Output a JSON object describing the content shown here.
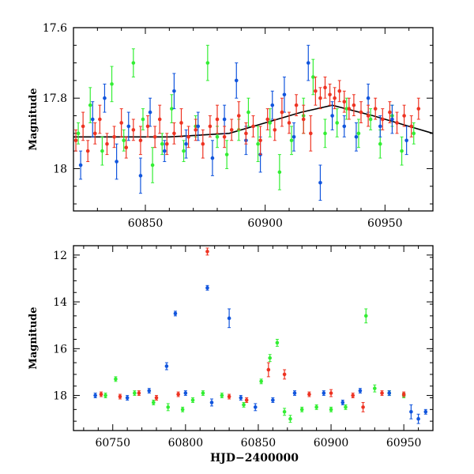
{
  "chart_data": [
    {
      "type": "scatter",
      "panel": "top",
      "title": "",
      "xlabel": "",
      "ylabel": "Magnitude",
      "xlim": [
        60820,
        60970
      ],
      "ylim": [
        17.6,
        18.12
      ],
      "y_inverted": true,
      "xticks": [
        60850,
        60900,
        60950
      ],
      "xtick_labels": [
        "60850",
        "60900",
        "60950"
      ],
      "yticks": [
        17.6,
        17.8,
        18.0
      ],
      "ytick_labels": [
        "17.6",
        "17.8",
        "18"
      ],
      "series": [
        {
          "name": "green",
          "color": "#33ee33",
          "points": [
            [
              60822,
              17.9,
              0.03
            ],
            [
              60827,
              17.82,
              0.05
            ],
            [
              60832,
              17.95,
              0.04
            ],
            [
              60836,
              17.76,
              0.05
            ],
            [
              60841,
              17.92,
              0.03
            ],
            [
              60845,
              17.7,
              0.04
            ],
            [
              60849,
              17.86,
              0.03
            ],
            [
              60853,
              17.99,
              0.05
            ],
            [
              60857,
              17.93,
              0.03
            ],
            [
              60861,
              17.83,
              0.04
            ],
            [
              60866,
              17.95,
              0.03
            ],
            [
              60871,
              17.88,
              0.03
            ],
            [
              60876,
              17.7,
              0.05
            ],
            [
              60880,
              17.91,
              0.03
            ],
            [
              60884,
              17.96,
              0.04
            ],
            [
              60889,
              17.89,
              0.03
            ],
            [
              60893,
              17.84,
              0.04
            ],
            [
              60897,
              17.93,
              0.05
            ],
            [
              60902,
              17.87,
              0.04
            ],
            [
              60906,
              18.01,
              0.05
            ],
            [
              60911,
              17.92,
              0.04
            ],
            [
              60916,
              17.85,
              0.05
            ],
            [
              60920,
              17.74,
              0.05
            ],
            [
              60925,
              17.9,
              0.04
            ],
            [
              60930,
              17.87,
              0.04
            ],
            [
              60934,
              17.83,
              0.03
            ],
            [
              60939,
              17.9,
              0.04
            ],
            [
              60944,
              17.86,
              0.03
            ],
            [
              60948,
              17.93,
              0.04
            ],
            [
              60953,
              17.85,
              0.03
            ],
            [
              60957,
              17.95,
              0.04
            ],
            [
              60962,
              17.9,
              0.03
            ]
          ]
        },
        {
          "name": "blue",
          "color": "#1155dd",
          "points": [
            [
              60823,
              17.99,
              0.04
            ],
            [
              60828,
              17.86,
              0.05
            ],
            [
              60833,
              17.8,
              0.04
            ],
            [
              60838,
              17.98,
              0.05
            ],
            [
              60843,
              17.88,
              0.04
            ],
            [
              60848,
              18.02,
              0.05
            ],
            [
              60852,
              17.84,
              0.04
            ],
            [
              60858,
              17.95,
              0.03
            ],
            [
              60862,
              17.78,
              0.05
            ],
            [
              60867,
              17.93,
              0.04
            ],
            [
              60872,
              17.88,
              0.04
            ],
            [
              60878,
              17.97,
              0.05
            ],
            [
              60883,
              17.86,
              0.04
            ],
            [
              60888,
              17.75,
              0.05
            ],
            [
              60892,
              17.92,
              0.04
            ],
            [
              60898,
              17.96,
              0.05
            ],
            [
              60903,
              17.82,
              0.04
            ],
            [
              60908,
              17.79,
              0.05
            ],
            [
              60912,
              17.91,
              0.04
            ],
            [
              60918,
              17.7,
              0.05
            ],
            [
              60923,
              18.04,
              0.05
            ],
            [
              60928,
              17.85,
              0.04
            ],
            [
              60933,
              17.88,
              0.03
            ],
            [
              60938,
              17.91,
              0.04
            ],
            [
              60943,
              17.8,
              0.04
            ],
            [
              60948,
              17.88,
              0.03
            ],
            [
              60953,
              17.86,
              0.04
            ],
            [
              60959,
              17.92,
              0.04
            ]
          ]
        },
        {
          "name": "red",
          "color": "#ee3322",
          "points": [
            [
              60821,
              17.92,
              0.03
            ],
            [
              60824,
              17.88,
              0.04
            ],
            [
              60826,
              17.95,
              0.03
            ],
            [
              60829,
              17.9,
              0.03
            ],
            [
              60831,
              17.86,
              0.04
            ],
            [
              60834,
              17.93,
              0.03
            ],
            [
              60837,
              17.91,
              0.03
            ],
            [
              60840,
              17.87,
              0.04
            ],
            [
              60842,
              17.94,
              0.03
            ],
            [
              60845,
              17.89,
              0.03
            ],
            [
              60848,
              17.92,
              0.04
            ],
            [
              60851,
              17.88,
              0.03
            ],
            [
              60854,
              17.91,
              0.03
            ],
            [
              60856,
              17.86,
              0.04
            ],
            [
              60859,
              17.93,
              0.03
            ],
            [
              60862,
              17.9,
              0.03
            ],
            [
              60865,
              17.87,
              0.04
            ],
            [
              60868,
              17.91,
              0.03
            ],
            [
              60871,
              17.89,
              0.03
            ],
            [
              60874,
              17.93,
              0.04
            ],
            [
              60877,
              17.88,
              0.03
            ],
            [
              60880,
              17.86,
              0.04
            ],
            [
              60883,
              17.91,
              0.03
            ],
            [
              60886,
              17.89,
              0.03
            ],
            [
              60889,
              17.85,
              0.04
            ],
            [
              60892,
              17.9,
              0.03
            ],
            [
              60895,
              17.88,
              0.03
            ],
            [
              60898,
              17.92,
              0.04
            ],
            [
              60901,
              17.86,
              0.03
            ],
            [
              60904,
              17.89,
              0.03
            ],
            [
              60907,
              17.84,
              0.04
            ],
            [
              60910,
              17.87,
              0.03
            ],
            [
              60913,
              17.82,
              0.03
            ],
            [
              60916,
              17.86,
              0.04
            ],
            [
              60919,
              17.9,
              0.05
            ],
            [
              60921,
              17.78,
              0.04
            ],
            [
              60923,
              17.8,
              0.03
            ],
            [
              60925,
              17.77,
              0.03
            ],
            [
              60927,
              17.79,
              0.03
            ],
            [
              60929,
              17.8,
              0.03
            ],
            [
              60931,
              17.78,
              0.03
            ],
            [
              60933,
              17.81,
              0.03
            ],
            [
              60935,
              17.83,
              0.03
            ],
            [
              60937,
              17.82,
              0.03
            ],
            [
              60940,
              17.84,
              0.03
            ],
            [
              60943,
              17.85,
              0.03
            ],
            [
              60946,
              17.83,
              0.03
            ],
            [
              60949,
              17.86,
              0.03
            ],
            [
              60952,
              17.84,
              0.03
            ],
            [
              60955,
              17.87,
              0.03
            ],
            [
              60958,
              17.85,
              0.03
            ],
            [
              60961,
              17.88,
              0.03
            ],
            [
              60964,
              17.83,
              0.03
            ]
          ]
        }
      ],
      "model_line": {
        "name": "model",
        "color": "#000000",
        "x": [
          60820,
          60860,
          60885,
          60900,
          60915,
          60928,
          60945,
          60970
        ],
        "y": [
          17.91,
          17.91,
          17.9,
          17.87,
          17.84,
          17.82,
          17.85,
          17.9
        ]
      }
    },
    {
      "type": "scatter",
      "panel": "bottom",
      "title": "",
      "xlabel": "HJD−2400000",
      "ylabel": "Magnitude",
      "xlim": [
        60723,
        60970
      ],
      "ylim": [
        11.6,
        19.5
      ],
      "y_inverted": true,
      "xticks": [
        60750,
        60800,
        60850,
        60900,
        60950
      ],
      "xtick_labels": [
        "60750",
        "60800",
        "60850",
        "60900",
        "60950"
      ],
      "yticks": [
        12,
        14,
        16,
        18
      ],
      "ytick_labels": [
        "12",
        "14",
        "16",
        "18"
      ],
      "series": [
        {
          "name": "green",
          "color": "#33ee33",
          "points": [
            [
              60745,
              18.0,
              0.1
            ],
            [
              60752,
              17.3,
              0.1
            ],
            [
              60765,
              17.9,
              0.1
            ],
            [
              60778,
              18.3,
              0.1
            ],
            [
              60788,
              18.5,
              0.15
            ],
            [
              60798,
              18.6,
              0.1
            ],
            [
              60805,
              18.2,
              0.1
            ],
            [
              60812,
              17.9,
              0.1
            ],
            [
              60825,
              18.0,
              0.1
            ],
            [
              60840,
              18.4,
              0.1
            ],
            [
              60852,
              17.4,
              0.1
            ],
            [
              60858,
              16.4,
              0.15
            ],
            [
              60863,
              15.75,
              0.15
            ],
            [
              60868,
              18.7,
              0.15
            ],
            [
              60872,
              19.0,
              0.15
            ],
            [
              60880,
              18.6,
              0.1
            ],
            [
              60890,
              18.5,
              0.1
            ],
            [
              60900,
              18.6,
              0.1
            ],
            [
              60910,
              18.5,
              0.1
            ],
            [
              60924,
              14.6,
              0.3
            ],
            [
              60930,
              17.7,
              0.15
            ],
            [
              60940,
              17.9,
              0.1
            ],
            [
              60950,
              18.0,
              0.1
            ]
          ]
        },
        {
          "name": "blue",
          "color": "#1155dd",
          "points": [
            [
              60738,
              18.0,
              0.1
            ],
            [
              60760,
              18.1,
              0.1
            ],
            [
              60775,
              17.8,
              0.1
            ],
            [
              60787,
              16.75,
              0.15
            ],
            [
              60793,
              14.5,
              0.1
            ],
            [
              60800,
              17.9,
              0.1
            ],
            [
              60815,
              13.4,
              0.1
            ],
            [
              60818,
              18.3,
              0.15
            ],
            [
              60830,
              14.7,
              0.4
            ],
            [
              60838,
              18.1,
              0.1
            ],
            [
              60848,
              18.5,
              0.15
            ],
            [
              60860,
              18.2,
              0.1
            ],
            [
              60875,
              17.9,
              0.1
            ],
            [
              60895,
              17.9,
              0.1
            ],
            [
              60908,
              18.3,
              0.1
            ],
            [
              60920,
              17.8,
              0.1
            ],
            [
              60940,
              17.9,
              0.1
            ],
            [
              60955,
              18.7,
              0.3
            ],
            [
              60960,
              19.0,
              0.2
            ],
            [
              60965,
              18.7,
              0.1
            ]
          ]
        },
        {
          "name": "red",
          "color": "#ee3322",
          "points": [
            [
              60742,
              17.95,
              0.1
            ],
            [
              60755,
              18.05,
              0.1
            ],
            [
              60768,
              17.9,
              0.1
            ],
            [
              60780,
              18.1,
              0.1
            ],
            [
              60795,
              17.95,
              0.1
            ],
            [
              60815,
              11.85,
              0.15
            ],
            [
              60830,
              18.05,
              0.1
            ],
            [
              60842,
              18.2,
              0.1
            ],
            [
              60857,
              16.9,
              0.3
            ],
            [
              60868,
              17.1,
              0.2
            ],
            [
              60885,
              17.95,
              0.1
            ],
            [
              60900,
              17.9,
              0.15
            ],
            [
              60915,
              18.0,
              0.1
            ],
            [
              60922,
              18.5,
              0.2
            ],
            [
              60935,
              17.9,
              0.1
            ],
            [
              60950,
              17.95,
              0.1
            ]
          ]
        }
      ]
    }
  ]
}
